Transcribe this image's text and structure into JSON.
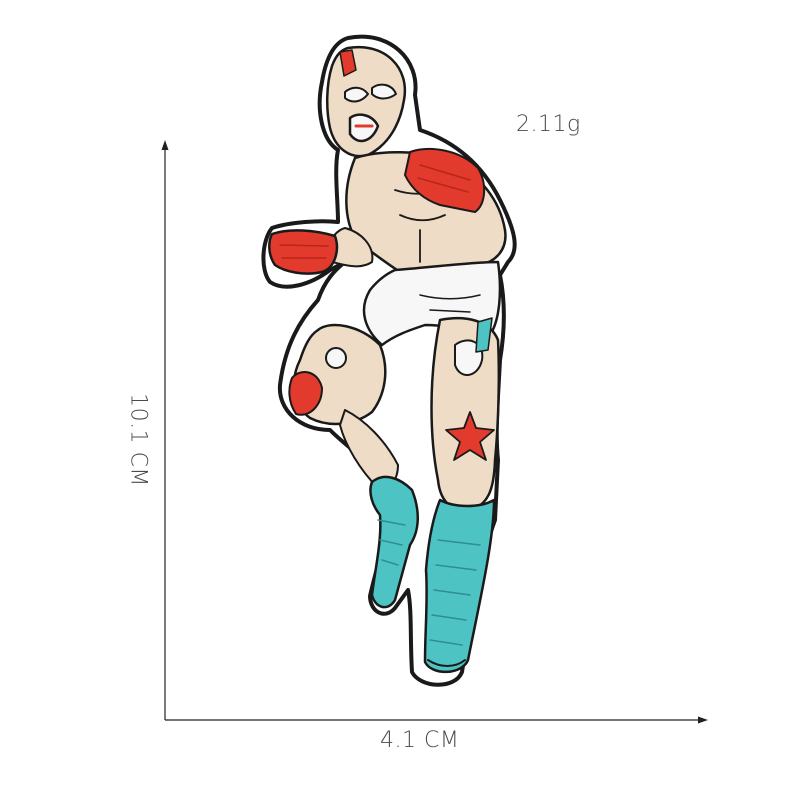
{
  "labels": {
    "weight": "2.11g",
    "height": "10.1 CM",
    "width": "4.1 CM"
  },
  "colors": {
    "background": "#ffffff",
    "outline": "#1a1a1a",
    "border": "#ffffff",
    "skin": "#efdcc6",
    "red": "#e23b2e",
    "teal": "#4ec3c3",
    "white": "#f7f7f7",
    "arrow": "#222222",
    "text": "#4a4a4a"
  }
}
